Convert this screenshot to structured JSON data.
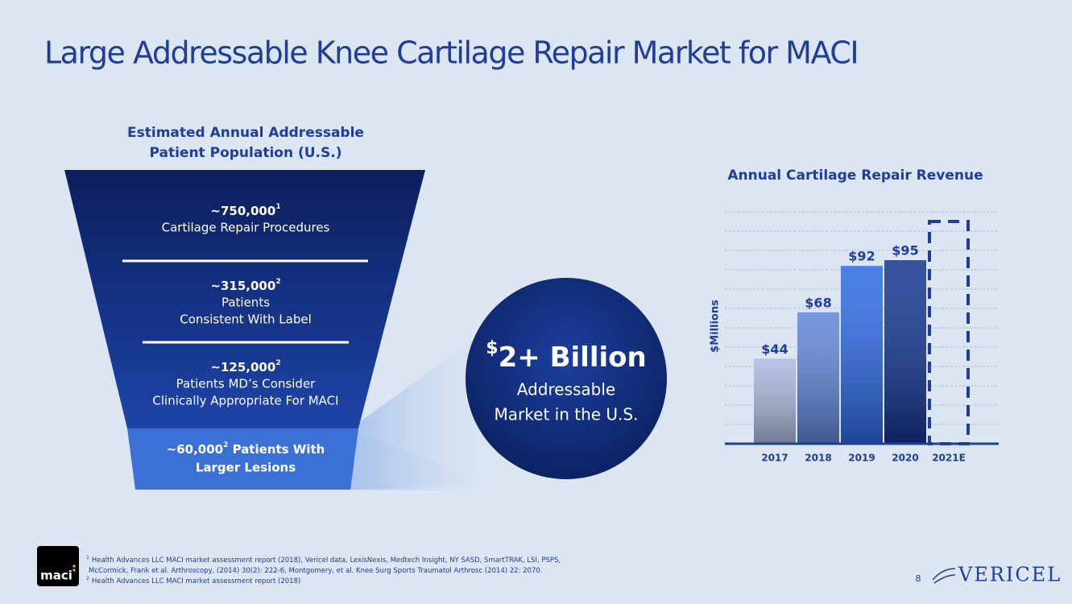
{
  "title": "Large Addressable Knee Cartilage Repair Market for MACI",
  "funnel": {
    "heading": [
      "Estimated Annual Addressable",
      "Patient Population (U.S.)"
    ],
    "levels": [
      {
        "number": "~750,000",
        "note": "1",
        "lines": [
          "Cartilage Repair Procedures"
        ]
      },
      {
        "number": "~315,000",
        "note": "2",
        "lines": [
          "Patients",
          "Consistent With Label"
        ]
      },
      {
        "number": "~125,000",
        "note": "2",
        "lines": [
          "Patients MD’s Consider",
          "Clinically Appropriate For MACI"
        ]
      },
      {
        "number": "~60,000",
        "note": "2",
        "lines": [
          " Patients With",
          "Larger Lesions"
        ]
      }
    ]
  },
  "callout": {
    "symbol": "$",
    "headline": "2+ Billion",
    "lines": [
      "Addressable",
      "Market in the U.S."
    ]
  },
  "chart_data": {
    "type": "bar",
    "title": "Annual Cartilage Repair Revenue",
    "y_label": "$Millions",
    "categories": [
      "2017",
      "2018",
      "2019",
      "2020",
      "2021E"
    ],
    "values": [
      44,
      68,
      92,
      95,
      115
    ],
    "value_labels": [
      "$44",
      "$68",
      "$92",
      "$95",
      null
    ],
    "colors": [
      "#aab8dc",
      "#5f86d8",
      "#2c6ae6",
      "#123590",
      "#1f3d99"
    ],
    "dashed": [
      false,
      false,
      false,
      false,
      true
    ],
    "ylim": [
      0,
      120
    ],
    "yticks": [
      10,
      20,
      30,
      40,
      50,
      60,
      70,
      80,
      90,
      100,
      110,
      120
    ],
    "grid": true
  },
  "footnotes": [
    {
      "note": "1",
      "lines": [
        "Health Advances LLC MACI market assessment report (2018), Vericel data, LexisNexis, Medtech Insight, NY SASD, SmartTRAK, LSI, PSPS,",
        "McCormick, Frank et al.  Arthroscopy, (2014) 30(2): 222-6, Montgomery, et al. Knee Surg Sports Traumatol Arthrosc (2014) 22: 2070."
      ]
    },
    {
      "note": "2",
      "lines": [
        "Health Advances LLC MACI market assessment report (2018)"
      ]
    }
  ],
  "page_number": "8",
  "logo": "maci",
  "brand": "VERICEL"
}
